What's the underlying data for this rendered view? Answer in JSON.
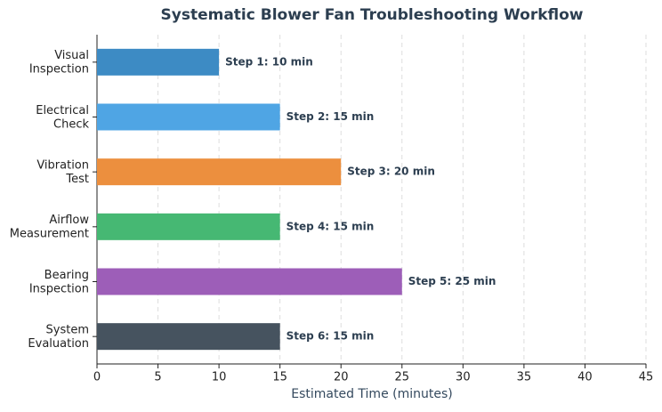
{
  "chart_data": {
    "type": "barh",
    "title": "Systematic Blower Fan Troubleshooting Workflow",
    "xlabel": "Estimated Time (minutes)",
    "categories": [
      "Visual\nInspection",
      "Electrical\nCheck",
      "Vibration\nTest",
      "Airflow\nMeasurement",
      "Bearing\nInspection",
      "System\nEvaluation"
    ],
    "values": [
      10,
      15,
      20,
      15,
      25,
      15
    ],
    "value_labels": [
      "Step 1: 10 min",
      "Step 2: 15 min",
      "Step 3: 20 min",
      "Step 4: 15 min",
      "Step 5: 25 min",
      "Step 6: 15 min"
    ],
    "colors": [
      "#3d8bc4",
      "#4fa5e4",
      "#ec8f3e",
      "#46b873",
      "#9d5eb8",
      "#46535f"
    ],
    "xlim": [
      0,
      45
    ],
    "xticks": [
      0,
      5,
      10,
      15,
      20,
      25,
      30,
      35,
      40,
      45
    ],
    "grid": true
  }
}
